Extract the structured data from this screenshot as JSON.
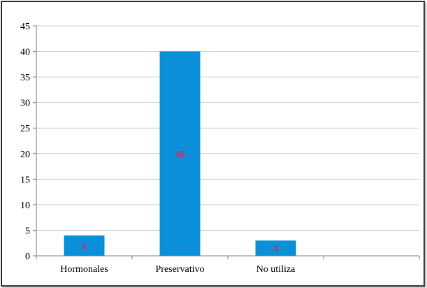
{
  "chart_data": {
    "type": "bar",
    "categories": [
      "Hormonales",
      "Preservativo",
      "No utiliza"
    ],
    "values": [
      4,
      40,
      3
    ],
    "data_labels": [
      "4",
      "40",
      "3"
    ],
    "yticks": [
      0,
      5,
      10,
      15,
      20,
      25,
      30,
      35,
      40,
      45
    ],
    "ylim": [
      0,
      45
    ],
    "grid": true,
    "legend": false,
    "title": "",
    "xlabel": "",
    "ylabel": "",
    "colors": {
      "bar": "#0b8fd8",
      "data_label": "#e0245e",
      "grid": "#d0d0d0",
      "axis": "#808080"
    }
  }
}
